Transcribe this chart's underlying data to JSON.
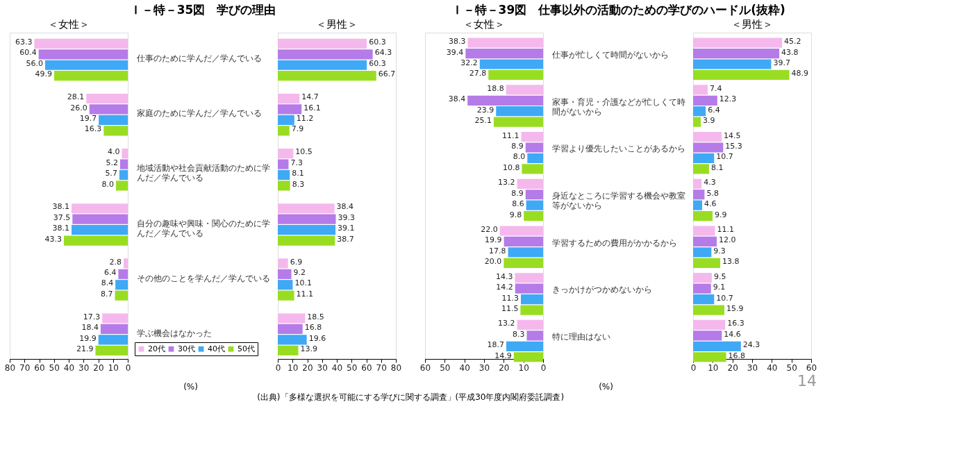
{
  "chart_data": [
    {
      "type": "bar",
      "orientation": "horizontal",
      "title": "Ｉ－特－35図　学びの理由",
      "subtitle": "＜女性＞",
      "xlabel": "(%)",
      "xlim": [
        80,
        0
      ],
      "xticks": [
        80,
        70,
        60,
        50,
        40,
        30,
        20,
        10,
        0
      ],
      "legend": "bottom right",
      "grid": false,
      "categories": [
        "仕事のために学んだ／学んでいる",
        "家庭のために学んだ／学んでいる",
        "地域活動や社会貢献活動のために学んだ／学んでいる",
        "自分の趣味や興味・関心のために学んだ／学んでいる",
        "その他のことを学んだ／学んでいる",
        "学ぶ機会はなかった"
      ],
      "series": [
        {
          "name": "20代",
          "color": "#f4b8ec",
          "values": [
            63.3,
            28.1,
            4.0,
            38.1,
            2.8,
            17.3
          ],
          "value_labels": [
            "63.3",
            "28.1",
            "4.0",
            "38.1",
            "2.8",
            "17.3"
          ]
        },
        {
          "name": "30代",
          "color": "#b57be8",
          "values": [
            60.4,
            26.0,
            5.2,
            37.5,
            6.4,
            18.4
          ],
          "value_labels": [
            "60.4",
            "26.0",
            "5.2",
            "37.5",
            "6.4",
            "18.4"
          ]
        },
        {
          "name": "40代",
          "color": "#3fa9f5",
          "values": [
            56.0,
            19.7,
            5.7,
            38.1,
            8.4,
            19.9
          ],
          "value_labels": [
            "56.0",
            "19.7",
            "5.7",
            "38.1",
            "8.4",
            "19.9"
          ]
        },
        {
          "name": "50代",
          "color": "#99dd22",
          "values": [
            49.9,
            16.3,
            8.0,
            43.3,
            8.7,
            21.9
          ],
          "value_labels": [
            "49.9",
            "16.3",
            "8.0",
            "43.3",
            "8.7",
            "21.9"
          ]
        }
      ]
    },
    {
      "type": "bar",
      "orientation": "horizontal",
      "subtitle": "＜男性＞",
      "xlim": [
        0,
        80
      ],
      "xticks": [
        0,
        10,
        20,
        30,
        40,
        50,
        60,
        70,
        80
      ],
      "grid": false,
      "tick_labels": "x",
      "annotations": [
        "(出典)「多様な選択を可能にする学びに関する調査」(平成30年度内閣府委託調査)"
      ],
      "categories": [
        "仕事のために学んだ／学んでいる",
        "家庭のために学んだ／学んでいる",
        "地域活動や社会貢献活動のために学んだ／学んでいる",
        "自分の趣味や興味・関心のために学んだ／学んでいる",
        "その他のことを学んだ／学んでいる",
        "学ぶ機会はなかった"
      ],
      "series": [
        {
          "name": "20代",
          "color": "#f4b8ec",
          "values": [
            60.3,
            14.7,
            10.5,
            38.4,
            6.9,
            18.5
          ],
          "value_labels": [
            "60.3",
            "14.7",
            "10.5",
            "38.4",
            "6.9",
            "18.5"
          ]
        },
        {
          "name": "30代",
          "color": "#b57be8",
          "values": [
            64.3,
            16.1,
            7.3,
            39.3,
            9.2,
            16.8
          ],
          "value_labels": [
            "64.3",
            "16.1",
            "7.3",
            "39.3",
            "9.2",
            "16.8"
          ]
        },
        {
          "name": "40代",
          "color": "#3fa9f5",
          "values": [
            60.3,
            11.2,
            8.1,
            39.1,
            10.1,
            19.6
          ],
          "value_labels": [
            "60.3",
            "11.2",
            "8.1",
            "39.1",
            "10.1",
            "19.6"
          ]
        },
        {
          "name": "50代",
          "color": "#99dd22",
          "values": [
            66.7,
            7.9,
            8.3,
            38.7,
            11.1,
            13.9
          ],
          "value_labels": [
            "66.7",
            "7.9",
            "8.3",
            "38.7",
            "11.1",
            "13.9"
          ]
        }
      ]
    },
    {
      "type": "bar",
      "orientation": "horizontal",
      "title": "Ｉ－特－39図　仕事以外の活動のための学びのハードル(抜粋)",
      "subtitle": "＜女性＞",
      "xlabel": "(%)",
      "xlim": [
        60,
        0
      ],
      "xticks": [
        60,
        50,
        40,
        30,
        20,
        10,
        0
      ],
      "legend": "bottom right",
      "grid": false,
      "categories": [
        "仕事が忙しくて時間がないから",
        "家事・育児・介護などが忙しくて時間がないから",
        "学習より優先したいことがあるから",
        "身近なところに学習する機会や教室等がないから",
        "学習するための費用がかかるから",
        "きっかけがつかめないから",
        "特に理由はない"
      ],
      "series": [
        {
          "name": "20代",
          "color": "#f4b8ec",
          "values": [
            38.3,
            18.8,
            11.1,
            13.2,
            22.0,
            14.3,
            13.2
          ],
          "value_labels": [
            "38.3",
            "18.8",
            "11.1",
            "13.2",
            "22.0",
            "14.3",
            "13.2"
          ]
        },
        {
          "name": "30代",
          "color": "#b57be8",
          "values": [
            39.4,
            38.4,
            8.9,
            8.9,
            19.9,
            14.2,
            8.3
          ],
          "value_labels": [
            "39.4",
            "38.4",
            "8.9",
            "8.9",
            "19.9",
            "14.2",
            "8.3"
          ]
        },
        {
          "name": "40代",
          "color": "#3fa9f5",
          "values": [
            32.2,
            23.9,
            8.0,
            8.6,
            17.8,
            11.3,
            18.7
          ],
          "value_labels": [
            "32.2",
            "23.9",
            "8.0",
            "8.6",
            "17.8",
            "11.3",
            "18.7"
          ]
        },
        {
          "name": "50代",
          "color": "#99dd22",
          "values": [
            27.8,
            25.1,
            10.8,
            9.8,
            20.0,
            11.5,
            14.9
          ],
          "value_labels": [
            "27.8",
            "25.1",
            "10.8",
            "9.8",
            "20.0",
            "11.5",
            "14.9"
          ]
        }
      ]
    },
    {
      "type": "bar",
      "orientation": "horizontal",
      "subtitle": "＜男性＞",
      "xlim": [
        0,
        60
      ],
      "xticks": [
        0,
        10,
        20,
        30,
        40,
        50,
        60
      ],
      "grid": false,
      "tick_labels": "x",
      "annotations": [
        "14"
      ],
      "categories": [
        "仕事が忙しくて時間がないから",
        "家事・育児・介護などが忙しくて時間がないから",
        "学習より優先したいことがあるから",
        "身近なところに学習する機会や教室等がないから",
        "学習するための費用がかかるから",
        "きっかけがつかめないから",
        "特に理由はない"
      ],
      "series": [
        {
          "name": "20代",
          "color": "#f4b8ec",
          "values": [
            45.2,
            7.4,
            14.5,
            4.3,
            11.1,
            9.5,
            16.3
          ],
          "value_labels": [
            "45.2",
            "7.4",
            "14.5",
            "4.3",
            "11.1",
            "9.5",
            "16.3"
          ]
        },
        {
          "name": "30代",
          "color": "#b57be8",
          "values": [
            43.8,
            12.3,
            15.3,
            5.8,
            12.0,
            9.1,
            14.6
          ],
          "value_labels": [
            "43.8",
            "12.3",
            "15.3",
            "5.8",
            "12.0",
            "9.1",
            "14.6"
          ]
        },
        {
          "name": "40代",
          "color": "#3fa9f5",
          "values": [
            39.7,
            6.4,
            10.7,
            4.6,
            9.3,
            10.7,
            24.3
          ],
          "value_labels": [
            "39.7",
            "6.4",
            "10.7",
            "4.6",
            "9.3",
            "10.7",
            "24.3"
          ]
        },
        {
          "name": "50代",
          "color": "#99dd22",
          "values": [
            48.9,
            3.9,
            8.1,
            9.9,
            13.8,
            15.9,
            16.8
          ],
          "value_labels": [
            "48.9",
            "3.9",
            "8.1",
            "9.9",
            "13.8",
            "15.9",
            "16.8"
          ]
        }
      ]
    }
  ]
}
